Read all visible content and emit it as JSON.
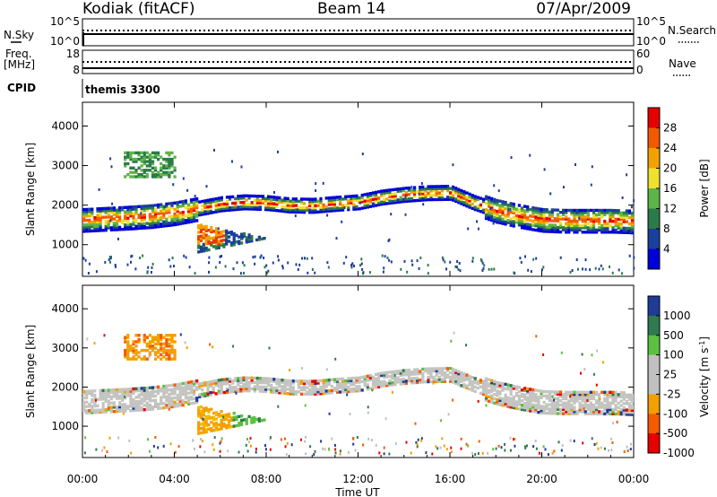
{
  "header": {
    "station": "Kodiak (fitACF)",
    "beam": "Beam 14",
    "date": "07/Apr/2009"
  },
  "chart_data": [
    {
      "type": "line",
      "panel": "noise",
      "left_label": "N.Sky",
      "right_label": "N.Search",
      "left_ticks": [
        "10^5",
        "10^0"
      ],
      "right_ticks": [
        "10^5",
        "10^0"
      ],
      "legend": "N.Search"
    },
    {
      "type": "line",
      "panel": "frequency",
      "left_label": "Freq.",
      "left_unit": "[MHz]",
      "left_ticks": [
        "18",
        "8"
      ],
      "right_ticks": [
        "60",
        "0"
      ],
      "legend": "Nave"
    },
    {
      "type": "table",
      "panel": "cpid",
      "label": "CPID",
      "text": "themis 3300"
    },
    {
      "type": "heatmap",
      "panel": "power",
      "ylabel": "Slant Range [km]",
      "xlabel": "Time UT",
      "ylim": [
        200,
        4600
      ],
      "yticks": [
        1000,
        2000,
        3000,
        4000
      ],
      "colorbar_label": "Power [dB]",
      "colorbar_ticks": [
        "28",
        "24",
        "20",
        "16",
        "12",
        "8",
        "4"
      ],
      "colorbar_colors": [
        "#e60000",
        "#f25a00",
        "#f2a200",
        "#f0e030",
        "#5cb548",
        "#2c7a4a",
        "#1b3f9c",
        "#0000d8"
      ],
      "band_center_km": [
        [
          0,
          1620
        ],
        [
          1,
          1650
        ],
        [
          2,
          1680
        ],
        [
          3,
          1720
        ],
        [
          4,
          1790
        ],
        [
          5,
          1900
        ],
        [
          6,
          2010
        ],
        [
          7,
          2060
        ],
        [
          8,
          2040
        ],
        [
          9,
          1980
        ],
        [
          10,
          1970
        ],
        [
          11,
          2020
        ],
        [
          12,
          2060
        ],
        [
          13,
          2180
        ],
        [
          14,
          2250
        ],
        [
          15,
          2290
        ],
        [
          16,
          2300
        ],
        [
          17,
          2050
        ],
        [
          18,
          1850
        ],
        [
          19,
          1720
        ],
        [
          20,
          1620
        ],
        [
          21,
          1600
        ],
        [
          22,
          1600
        ],
        [
          23,
          1600
        ],
        [
          24,
          1580
        ]
      ]
    },
    {
      "type": "heatmap",
      "panel": "velocity",
      "ylabel": "Slant Range [km]",
      "xlabel": "Time UT",
      "ylim": [
        200,
        4600
      ],
      "yticks": [
        1000,
        2000,
        3000,
        4000
      ],
      "colorbar_label": "Velocity [m s",
      "colorbar_unit_sup": "-1",
      "colorbar_unit_end": "]",
      "colorbar_ticks": [
        "1000",
        "500",
        "100",
        "25",
        "-25",
        "-100",
        "-500",
        "-1000"
      ],
      "colorbar_colors": [
        "#1e3c96",
        "#2f7a4f",
        "#5cc040",
        "#c0c0c0",
        "#c0c0c0",
        "#f2a000",
        "#f55a00",
        "#e60000"
      ],
      "xticks": [
        "00:00",
        "04:00",
        "08:00",
        "12:00",
        "16:00",
        "20:00",
        "00:00"
      ],
      "xlim": [
        0,
        24
      ]
    }
  ]
}
